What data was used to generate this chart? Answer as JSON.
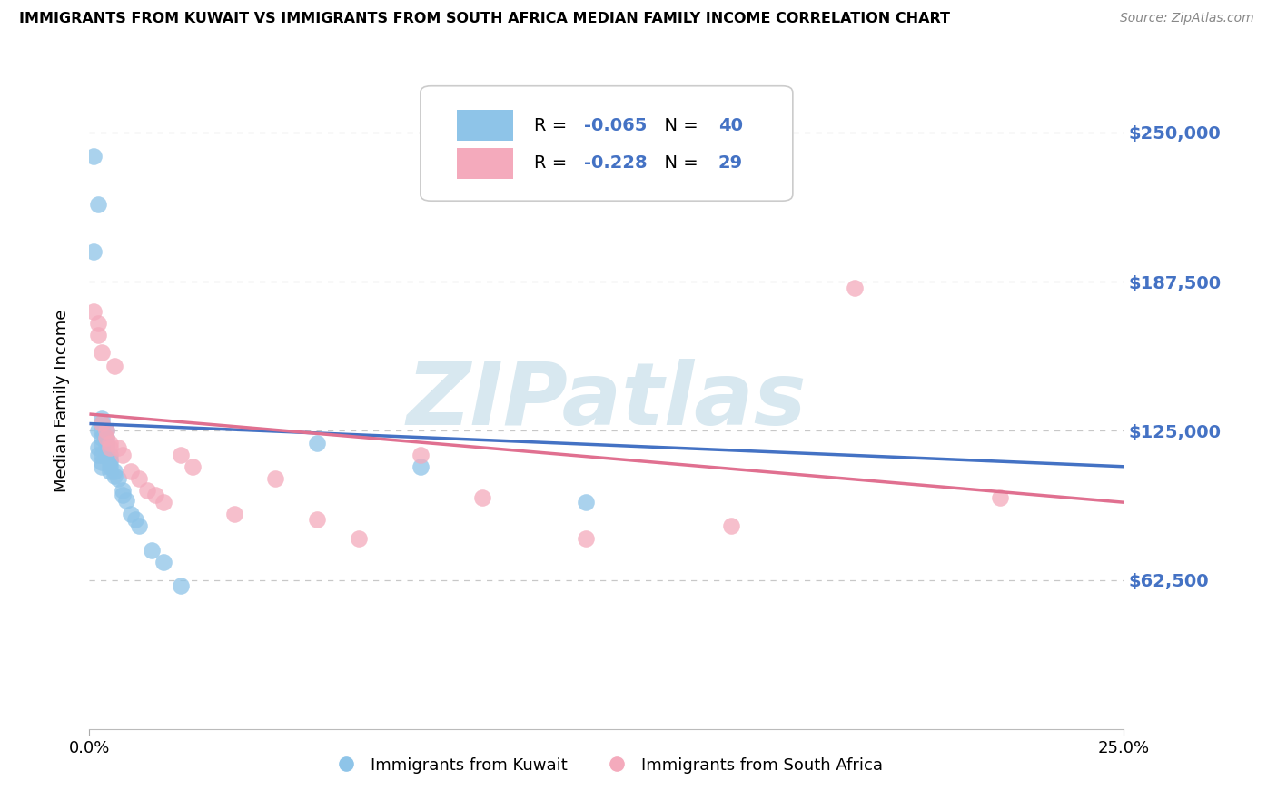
{
  "title": "IMMIGRANTS FROM KUWAIT VS IMMIGRANTS FROM SOUTH AFRICA MEDIAN FAMILY INCOME CORRELATION CHART",
  "source": "Source: ZipAtlas.com",
  "ylabel": "Median Family Income",
  "legend_kuwait": "Immigrants from Kuwait",
  "legend_sa": "Immigrants from South Africa",
  "r_kuwait": -0.065,
  "n_kuwait": 40,
  "r_sa": -0.228,
  "n_sa": 29,
  "yticks": [
    0,
    62500,
    125000,
    187500,
    250000
  ],
  "ytick_labels": [
    "",
    "$62,500",
    "$125,000",
    "$187,500",
    "$250,000"
  ],
  "ylim": [
    0,
    275000
  ],
  "xlim": [
    0.0,
    0.25
  ],
  "color_kuwait": "#8EC4E8",
  "color_sa": "#F4AABC",
  "color_trendline_kuwait": "#4472C4",
  "color_trendline_sa": "#E07090",
  "color_grid": "#C8C8C8",
  "color_ytick_label": "#4472C4",
  "color_legend_text": "#4472C4",
  "watermark_text": "ZIPatlas",
  "watermark_color": "#D8E8F0",
  "trendline_kuwait_y0": 128000,
  "trendline_kuwait_y1": 110000,
  "trendline_sa_y0": 132000,
  "trendline_sa_y1": 95000,
  "kuwait_x": [
    0.001,
    0.001,
    0.002,
    0.002,
    0.002,
    0.003,
    0.003,
    0.003,
    0.003,
    0.003,
    0.004,
    0.004,
    0.004,
    0.004,
    0.005,
    0.005,
    0.005,
    0.005,
    0.006,
    0.006,
    0.007,
    0.008,
    0.009,
    0.01,
    0.011,
    0.012,
    0.015,
    0.018,
    0.022,
    0.003,
    0.003,
    0.004,
    0.004,
    0.005,
    0.008,
    0.055,
    0.08,
    0.12,
    0.002,
    0.003
  ],
  "kuwait_y": [
    240000,
    200000,
    220000,
    125000,
    118000,
    130000,
    128000,
    125000,
    122000,
    119000,
    125000,
    122000,
    120000,
    118000,
    115000,
    113000,
    112000,
    110000,
    108000,
    106000,
    105000,
    100000,
    96000,
    90000,
    88000,
    85000,
    75000,
    70000,
    60000,
    115000,
    112000,
    116000,
    114000,
    108000,
    98000,
    120000,
    110000,
    95000,
    115000,
    110000
  ],
  "sa_x": [
    0.001,
    0.002,
    0.002,
    0.003,
    0.003,
    0.004,
    0.004,
    0.005,
    0.005,
    0.006,
    0.007,
    0.008,
    0.01,
    0.012,
    0.014,
    0.016,
    0.018,
    0.022,
    0.025,
    0.035,
    0.045,
    0.055,
    0.065,
    0.08,
    0.095,
    0.12,
    0.155,
    0.185,
    0.22
  ],
  "sa_y": [
    175000,
    170000,
    165000,
    158000,
    128000,
    125000,
    122000,
    120000,
    118000,
    152000,
    118000,
    115000,
    108000,
    105000,
    100000,
    98000,
    95000,
    115000,
    110000,
    90000,
    105000,
    88000,
    80000,
    115000,
    97000,
    80000,
    85000,
    185000,
    97000
  ]
}
